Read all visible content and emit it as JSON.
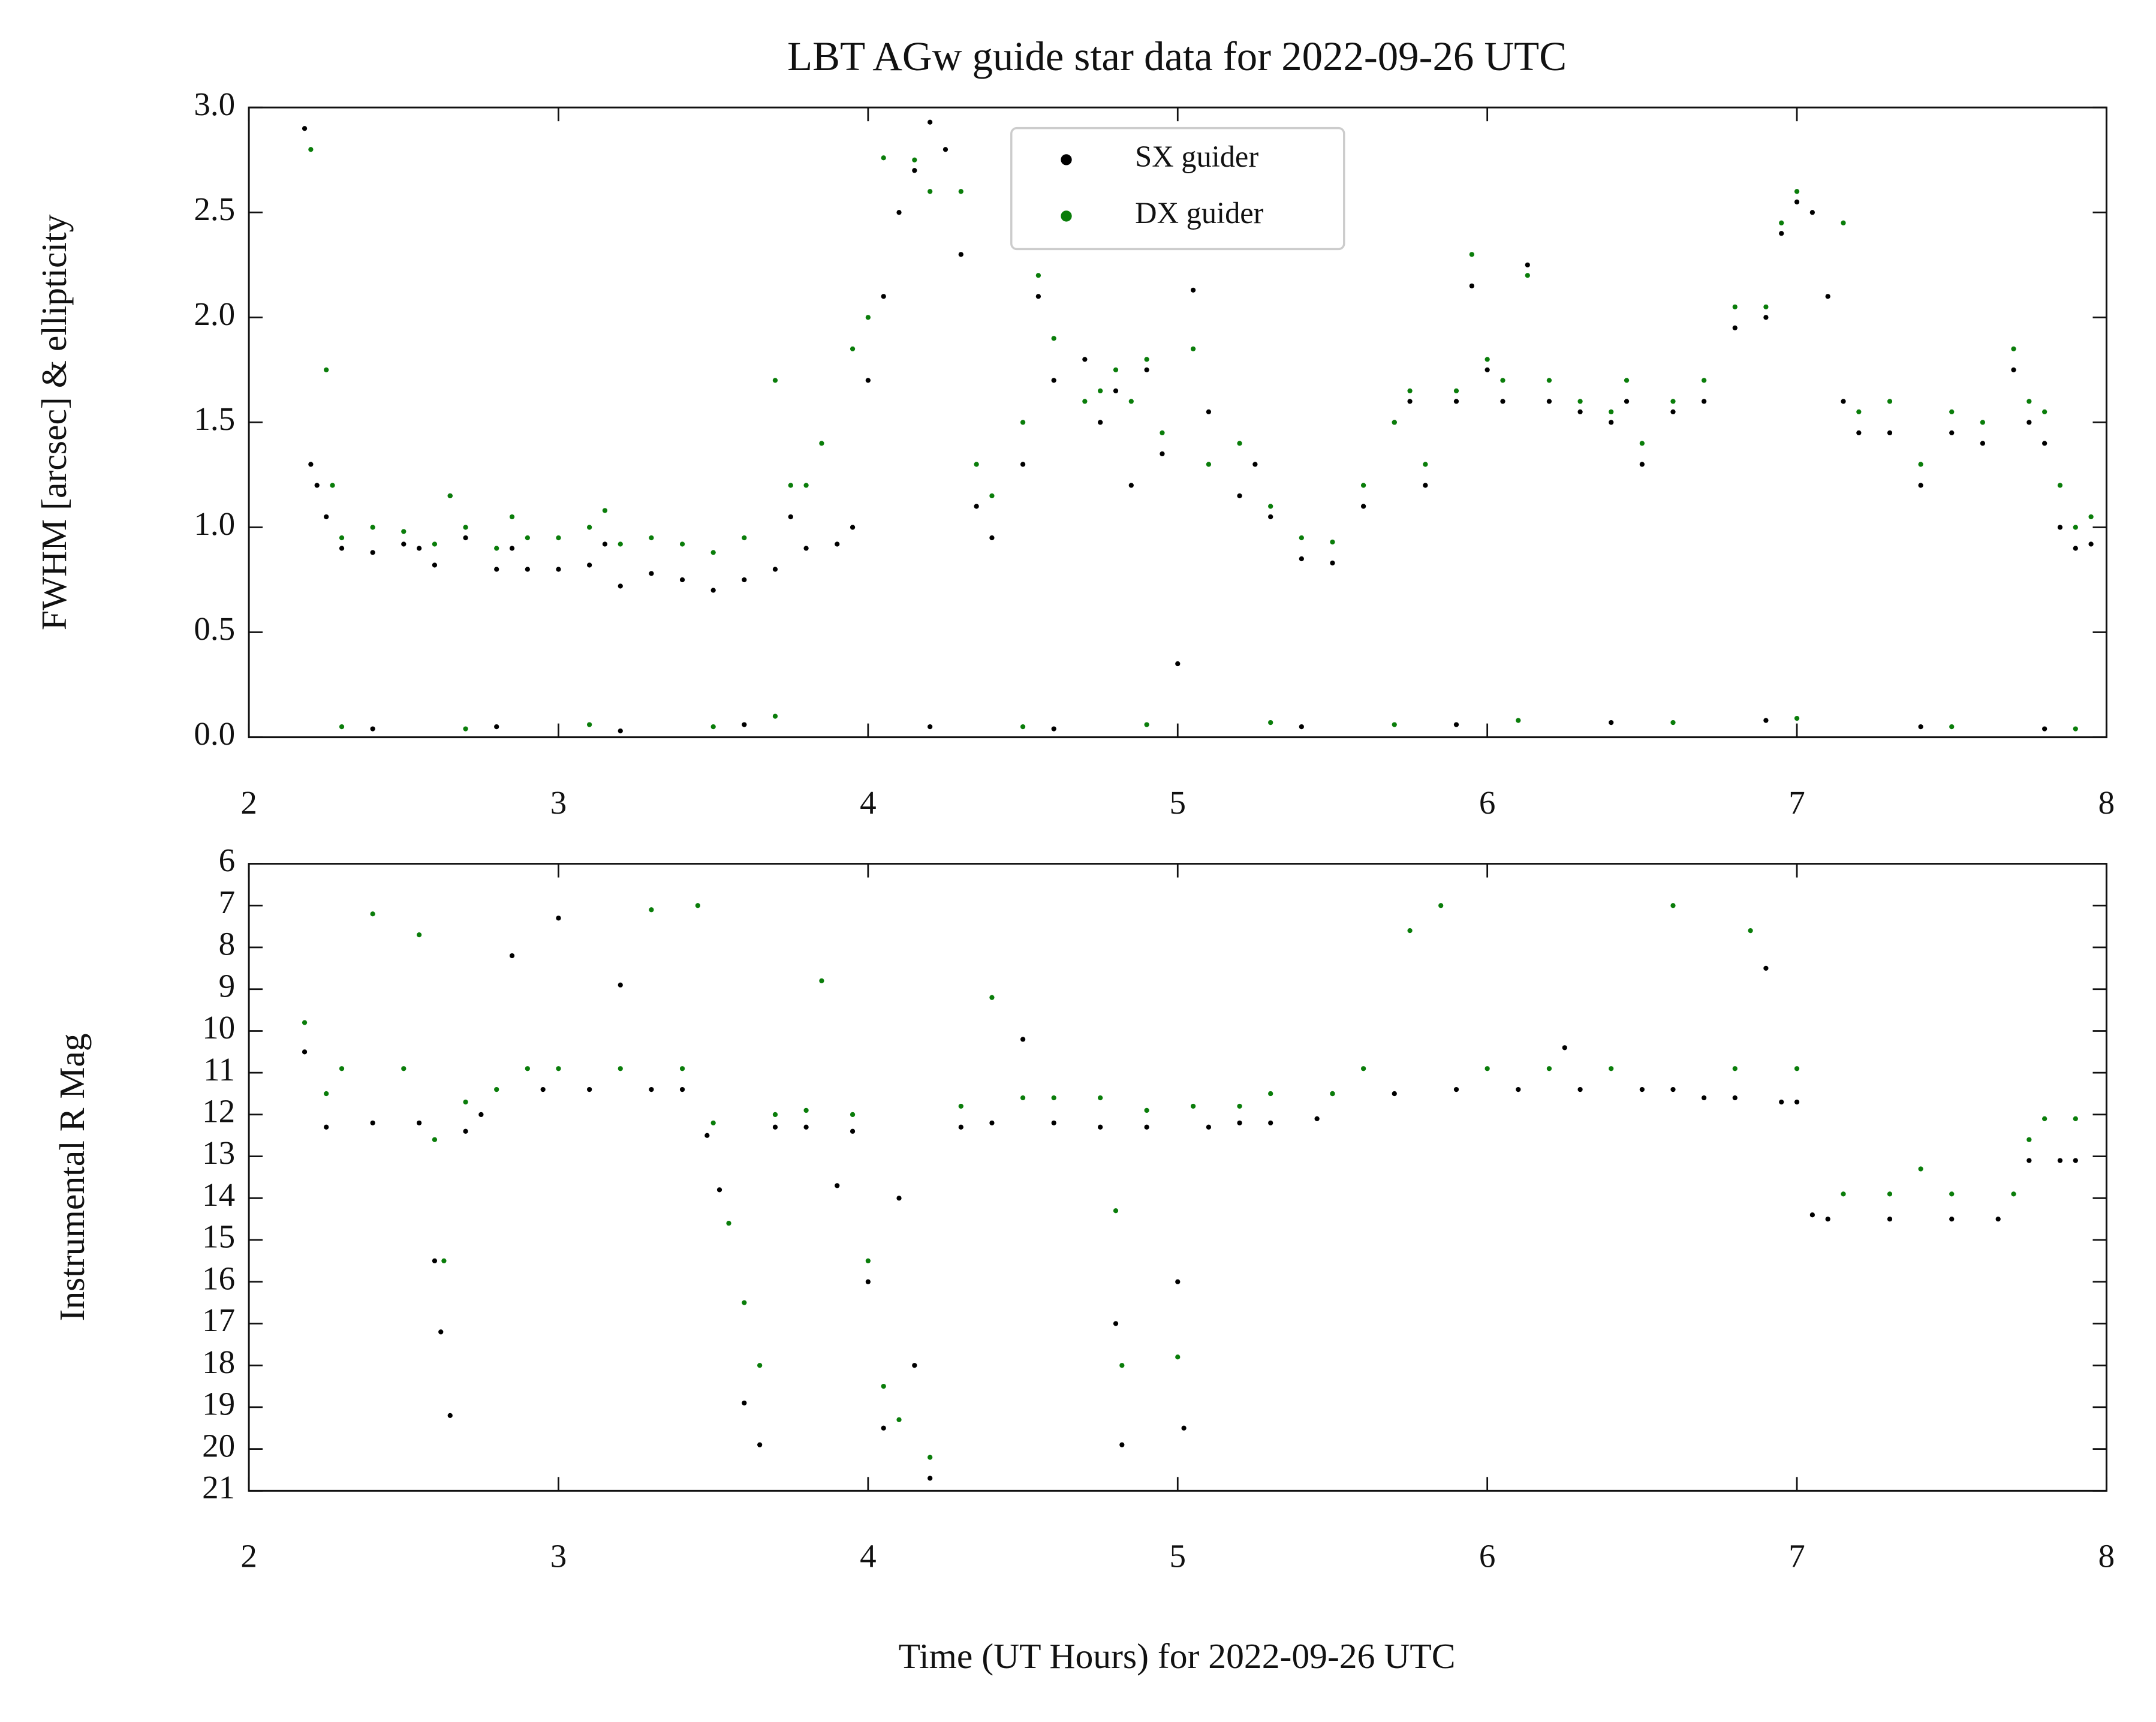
{
  "chart_data": [
    {
      "type": "scatter",
      "title": "LBT AGw guide star data for 2022-09-26 UTC",
      "y_label": "FWHM [arcsec] & ellipticity",
      "xlim": [
        2,
        8
      ],
      "xticks": [
        2,
        3,
        4,
        5,
        6,
        7,
        8
      ],
      "ylim": [
        0,
        3
      ],
      "yticks": [
        {
          "value": 0,
          "label": "0.0"
        },
        0.5,
        {
          "value": 1,
          "label": "1.0"
        },
        1.5,
        {
          "value": 2,
          "label": "2.0"
        },
        2.5,
        {
          "value": 3,
          "label": "3.0"
        }
      ],
      "legend": "upper center",
      "series": [
        {
          "name": "SX guider",
          "color": "#000000",
          "x": [
            2.18,
            2.2,
            2.22,
            2.25,
            2.3,
            2.4,
            2.5,
            2.55,
            2.6,
            2.65,
            2.7,
            2.8,
            2.85,
            2.9,
            3.0,
            3.1,
            3.15,
            3.2,
            3.3,
            3.4,
            3.5,
            3.6,
            3.7,
            3.75,
            3.8,
            3.9,
            3.95,
            4.0,
            4.05,
            4.1,
            4.15,
            4.2,
            4.25,
            4.3,
            4.35,
            4.4,
            4.5,
            4.55,
            4.6,
            4.7,
            4.75,
            4.8,
            4.85,
            4.9,
            4.95,
            5.05,
            5.1,
            5.2,
            5.25,
            5.3,
            5.4,
            5.5,
            5.6,
            5.7,
            5.75,
            5.8,
            5.9,
            5.95,
            6.0,
            6.05,
            6.13,
            6.2,
            6.3,
            6.4,
            6.45,
            6.5,
            6.6,
            6.7,
            6.8,
            6.9,
            6.95,
            7.0,
            7.05,
            7.1,
            7.15,
            7.2,
            7.3,
            7.4,
            7.5,
            7.6,
            7.7,
            7.75,
            7.8,
            7.85,
            7.9,
            7.95,
            2.4,
            2.8,
            3.2,
            3.6,
            4.2,
            4.6,
            5.0,
            5.4,
            5.9,
            6.4,
            6.9,
            7.4,
            7.8
          ],
          "values": [
            2.9,
            1.3,
            1.2,
            1.05,
            0.9,
            0.88,
            0.92,
            0.9,
            0.82,
            1.15,
            0.95,
            0.8,
            0.9,
            0.8,
            0.8,
            0.82,
            0.92,
            0.72,
            0.78,
            0.75,
            0.7,
            0.75,
            0.8,
            1.05,
            0.9,
            0.92,
            1.0,
            1.7,
            2.1,
            2.5,
            2.7,
            2.93,
            2.8,
            2.3,
            1.1,
            0.95,
            1.3,
            2.1,
            1.7,
            1.8,
            1.5,
            1.65,
            1.2,
            1.75,
            1.35,
            2.13,
            1.55,
            1.15,
            1.3,
            1.05,
            0.85,
            0.83,
            1.1,
            1.5,
            1.6,
            1.2,
            1.6,
            2.15,
            1.75,
            1.6,
            2.25,
            1.6,
            1.55,
            1.5,
            1.6,
            1.3,
            1.55,
            1.6,
            1.95,
            2.0,
            2.4,
            2.55,
            2.5,
            2.1,
            1.6,
            1.45,
            1.45,
            1.2,
            1.45,
            1.4,
            1.75,
            1.5,
            1.4,
            1.0,
            0.9,
            0.92,
            0.04,
            0.05,
            0.03,
            0.06,
            0.05,
            0.04,
            0.35,
            0.05,
            0.06,
            0.07,
            0.08,
            0.05,
            0.04
          ]
        },
        {
          "name": "DX guider",
          "color": "#0a7d0a",
          "x": [
            2.2,
            2.25,
            2.27,
            2.3,
            2.4,
            2.5,
            2.6,
            2.65,
            2.7,
            2.8,
            2.85,
            2.9,
            3.0,
            3.1,
            3.15,
            3.2,
            3.3,
            3.4,
            3.5,
            3.6,
            3.7,
            3.75,
            3.8,
            3.85,
            3.95,
            4.0,
            4.05,
            4.15,
            4.2,
            4.3,
            4.35,
            4.4,
            4.5,
            4.55,
            4.6,
            4.7,
            4.75,
            4.8,
            4.85,
            4.9,
            4.95,
            5.05,
            5.1,
            5.2,
            5.3,
            5.4,
            5.5,
            5.6,
            5.7,
            5.75,
            5.8,
            5.9,
            5.95,
            6.0,
            6.05,
            6.13,
            6.2,
            6.3,
            6.4,
            6.45,
            6.5,
            6.6,
            6.7,
            6.8,
            6.9,
            6.95,
            7.0,
            7.15,
            7.2,
            7.3,
            7.4,
            7.5,
            7.6,
            7.7,
            7.75,
            7.8,
            7.85,
            7.9,
            7.95,
            2.3,
            2.7,
            3.1,
            3.5,
            3.7,
            4.5,
            4.9,
            5.3,
            5.7,
            6.1,
            6.6,
            7.0,
            7.5,
            7.9
          ],
          "values": [
            2.8,
            1.75,
            1.2,
            0.95,
            1.0,
            0.98,
            0.92,
            1.15,
            1.0,
            0.9,
            1.05,
            0.95,
            0.95,
            1.0,
            1.08,
            0.92,
            0.95,
            0.92,
            0.88,
            0.95,
            1.7,
            1.2,
            1.2,
            1.4,
            1.85,
            2.0,
            2.76,
            2.75,
            2.6,
            2.6,
            1.3,
            1.15,
            1.5,
            2.2,
            1.9,
            1.6,
            1.65,
            1.75,
            1.6,
            1.8,
            1.45,
            1.85,
            1.3,
            1.4,
            1.1,
            0.95,
            0.93,
            1.2,
            1.5,
            1.65,
            1.3,
            1.65,
            2.3,
            1.8,
            1.7,
            2.2,
            1.7,
            1.6,
            1.55,
            1.7,
            1.4,
            1.6,
            1.7,
            2.05,
            2.05,
            2.45,
            2.6,
            2.45,
            1.55,
            1.6,
            1.3,
            1.55,
            1.5,
            1.85,
            1.6,
            1.55,
            1.2,
            1.0,
            1.05,
            0.05,
            0.04,
            0.06,
            0.05,
            0.1,
            0.05,
            0.06,
            0.07,
            0.06,
            0.08,
            0.07,
            0.09,
            0.05,
            0.04
          ]
        }
      ]
    },
    {
      "type": "scatter",
      "y_label": "Instrumental R Mag",
      "x_label": "Time (UT Hours) for 2022-09-26 UTC",
      "xlim": [
        2,
        8
      ],
      "xticks": [
        2,
        3,
        4,
        5,
        6,
        7,
        8
      ],
      "ylim": [
        21,
        6
      ],
      "yticks": [
        6,
        7,
        8,
        9,
        10,
        11,
        12,
        13,
        14,
        15,
        16,
        17,
        18,
        19,
        20,
        21
      ],
      "series": [
        {
          "name": "SX guider",
          "color": "#000000",
          "x": [
            2.18,
            2.25,
            2.4,
            2.55,
            2.6,
            2.62,
            2.65,
            2.7,
            2.75,
            2.85,
            2.95,
            3.0,
            3.1,
            3.2,
            3.3,
            3.4,
            3.48,
            3.52,
            3.6,
            3.65,
            3.7,
            3.8,
            3.9,
            3.95,
            4.0,
            4.05,
            4.1,
            4.15,
            4.2,
            4.3,
            4.4,
            4.5,
            4.6,
            4.75,
            4.8,
            4.82,
            4.9,
            5.0,
            5.02,
            5.1,
            5.2,
            5.3,
            5.45,
            5.5,
            5.7,
            5.9,
            6.1,
            6.25,
            6.3,
            6.5,
            6.6,
            6.7,
            6.8,
            6.9,
            6.95,
            7.0,
            7.05,
            7.1,
            7.3,
            7.5,
            7.65,
            7.75,
            7.85,
            7.9
          ],
          "values": [
            10.5,
            12.3,
            12.2,
            12.2,
            15.5,
            17.2,
            19.2,
            12.4,
            12.0,
            8.2,
            11.4,
            7.3,
            11.4,
            8.9,
            11.4,
            11.4,
            12.5,
            13.8,
            18.9,
            19.9,
            12.3,
            12.3,
            13.7,
            12.4,
            16.0,
            19.5,
            14.0,
            18.0,
            20.7,
            12.3,
            12.2,
            10.2,
            12.2,
            12.3,
            17.0,
            19.9,
            12.3,
            16.0,
            19.5,
            12.3,
            12.2,
            12.2,
            12.1,
            11.5,
            11.5,
            11.4,
            11.4,
            10.4,
            11.4,
            11.4,
            11.4,
            11.6,
            11.6,
            8.5,
            11.7,
            11.7,
            14.4,
            14.5,
            14.5,
            14.5,
            14.5,
            13.1,
            13.1,
            13.1
          ]
        },
        {
          "name": "DX guider",
          "color": "#0a7d0a",
          "x": [
            2.18,
            2.25,
            2.3,
            2.4,
            2.5,
            2.55,
            2.6,
            2.63,
            2.7,
            2.8,
            2.9,
            3.0,
            3.2,
            3.3,
            3.4,
            3.45,
            3.5,
            3.55,
            3.6,
            3.65,
            3.7,
            3.8,
            3.85,
            3.95,
            4.0,
            4.05,
            4.1,
            4.2,
            4.3,
            4.4,
            4.5,
            4.6,
            4.75,
            4.8,
            4.82,
            4.9,
            5.0,
            5.05,
            5.2,
            5.3,
            5.5,
            5.6,
            5.75,
            5.85,
            6.0,
            6.2,
            6.4,
            6.6,
            6.8,
            6.85,
            7.0,
            7.15,
            7.3,
            7.4,
            7.5,
            7.7,
            7.75,
            7.8,
            7.9
          ],
          "values": [
            9.8,
            11.5,
            10.9,
            7.2,
            10.9,
            7.7,
            12.6,
            15.5,
            11.7,
            11.4,
            10.9,
            10.9,
            10.9,
            7.1,
            10.9,
            7.0,
            12.2,
            14.6,
            16.5,
            18.0,
            12.0,
            11.9,
            8.8,
            12.0,
            15.5,
            18.5,
            19.3,
            20.2,
            11.8,
            9.2,
            11.6,
            11.6,
            11.6,
            14.3,
            18.0,
            11.9,
            17.8,
            11.8,
            11.8,
            11.5,
            11.5,
            10.9,
            7.6,
            7.0,
            10.9,
            10.9,
            10.9,
            7.0,
            10.9,
            7.6,
            10.9,
            13.9,
            13.9,
            13.3,
            13.9,
            13.9,
            12.6,
            12.1,
            12.1
          ]
        }
      ]
    }
  ]
}
